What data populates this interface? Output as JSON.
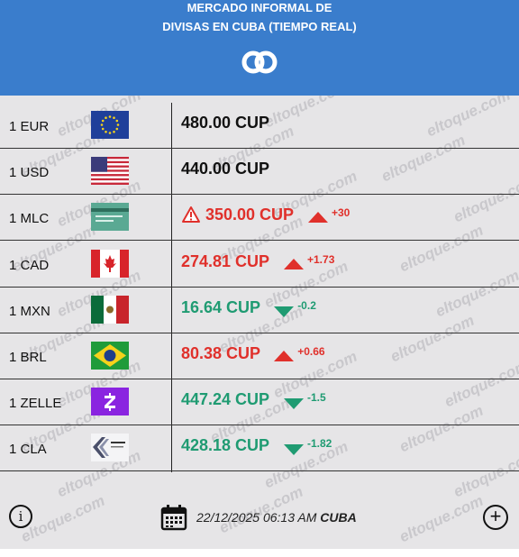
{
  "header": {
    "title_line1": "MERCADO INFORMAL DE",
    "title_line2": "DIVISAS EN CUBA (TIEMPO REAL)",
    "logo_icon": "eltoque-logo-icon",
    "bg_color": "#3a7dcc"
  },
  "watermark": "eltoque.com",
  "rates": [
    {
      "label": "1 EUR",
      "rate": "480.00 CUP",
      "color": "#111111",
      "change": "",
      "trend": "none",
      "flag": "eu-flag-icon"
    },
    {
      "label": "1 USD",
      "rate": "440.00 CUP",
      "color": "#111111",
      "change": "",
      "trend": "none",
      "flag": "us-flag-icon"
    },
    {
      "label": "1 MLC",
      "rate": "350.00 CUP",
      "color": "#e0302b",
      "change": "+30",
      "trend": "up",
      "warning": true,
      "flag": "mlc-card-icon"
    },
    {
      "label": "1 CAD",
      "rate": "274.81 CUP",
      "color": "#e0302b",
      "change": "+1.73",
      "trend": "up",
      "flag": "canada-flag-icon"
    },
    {
      "label": "1 MXN",
      "rate": "16.64 CUP",
      "color": "#1f9b72",
      "change": "-0.2",
      "trend": "down",
      "flag": "mexico-flag-icon"
    },
    {
      "label": "1 BRL",
      "rate": "80.38 CUP",
      "color": "#e0302b",
      "change": "+0.66",
      "trend": "up",
      "flag": "brazil-flag-icon"
    },
    {
      "label": "1 ZELLE",
      "rate": "447.24 CUP",
      "color": "#1f9b72",
      "change": "-1.5",
      "trend": "down",
      "flag": "zelle-icon"
    },
    {
      "label": "1 CLA",
      "rate": "428.18 CUP",
      "color": "#1f9b72",
      "change": "-1.82",
      "trend": "down",
      "flag": "cla-card-icon"
    }
  ],
  "footer": {
    "datetime": "22/12/2025 06:13 AM",
    "location": "CUBA",
    "info_label": "i",
    "add_label": "+"
  }
}
